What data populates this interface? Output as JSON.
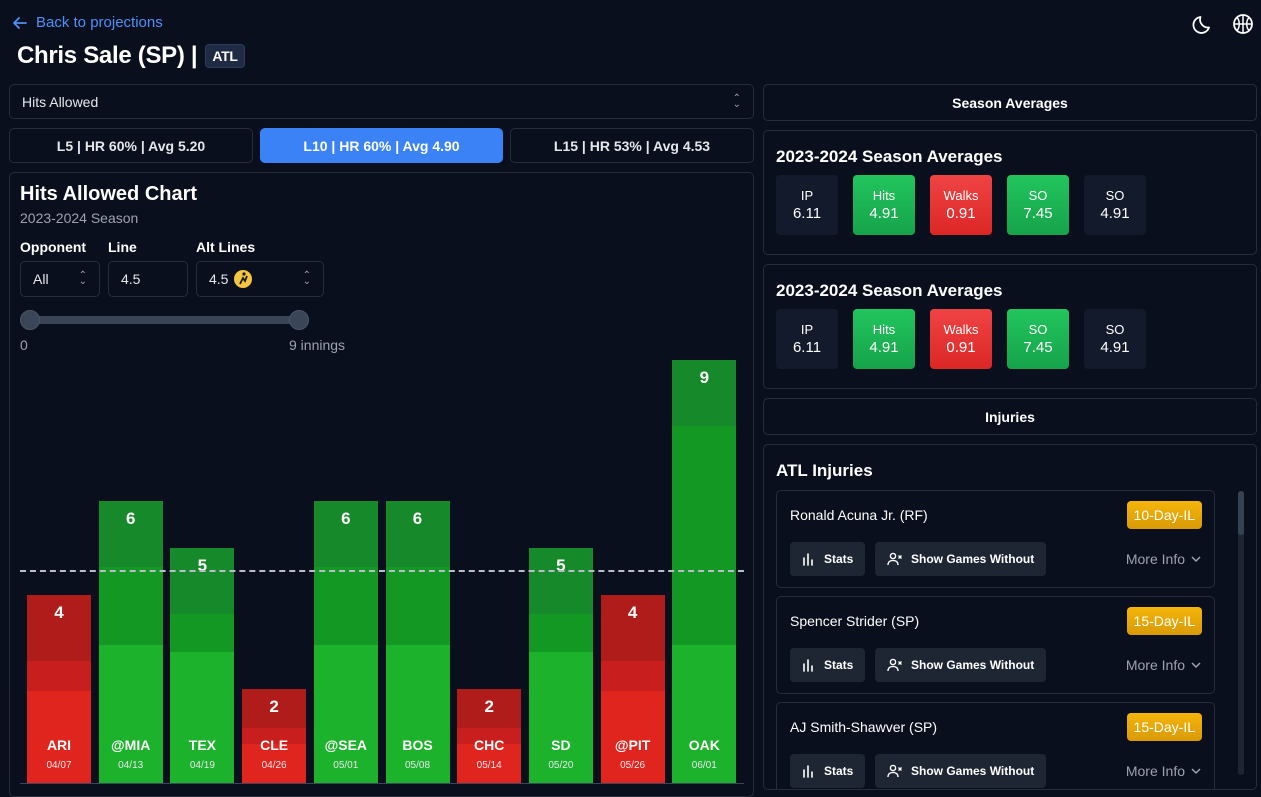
{
  "header": {
    "back_label": "Back to projections",
    "player_title": "Chris Sale (SP) |",
    "team": "ATL",
    "icons": [
      "moon-icon",
      "basketball-icon"
    ]
  },
  "stat_select": {
    "value": "Hits Allowed"
  },
  "ranges": [
    {
      "label": "L5 | HR 60% | Avg 5.20",
      "active": false
    },
    {
      "label": "L10 | HR 60% | Avg 4.90",
      "active": true
    },
    {
      "label": "L15 | HR 53% | Avg 4.53",
      "active": false
    }
  ],
  "chart_panel": {
    "title": "Hits Allowed Chart",
    "subtitle": "2023-2024 Season",
    "filters": {
      "opponent_label": "Opponent",
      "opponent_value": "All",
      "line_label": "Line",
      "line_value": "4.5",
      "alt_label": "Alt Lines",
      "alt_value": "4.5"
    },
    "slider": {
      "min_label": "0",
      "max_label": "9 innings",
      "min": 0,
      "max": 9
    }
  },
  "chart_data": {
    "type": "bar",
    "categories": [
      "ARI",
      "@MIA",
      "TEX",
      "CLE",
      "@SEA",
      "BOS",
      "CHC",
      "SD",
      "@PIT",
      "OAK"
    ],
    "dates": [
      "04/07",
      "04/13",
      "04/19",
      "04/26",
      "05/01",
      "05/08",
      "05/14",
      "05/20",
      "05/26",
      "06/01"
    ],
    "values": [
      4,
      6,
      5,
      2,
      6,
      6,
      2,
      5,
      4,
      9
    ],
    "line": 4.5,
    "colors": {
      "over": "#16a34a",
      "under": "#dc2626"
    }
  },
  "right": {
    "season_averages_header": "Season Averages",
    "avg_cards": [
      {
        "title": "2023-2024 Season Averages",
        "stats": [
          {
            "label": "IP",
            "value": "6.11",
            "tone": "n"
          },
          {
            "label": "Hits",
            "value": "4.91",
            "tone": "g"
          },
          {
            "label": "Walks",
            "value": "0.91",
            "tone": "r"
          },
          {
            "label": "SO",
            "value": "7.45",
            "tone": "g"
          },
          {
            "label": "SO",
            "value": "4.91",
            "tone": "n"
          }
        ]
      },
      {
        "title": "2023-2024 Season Averages",
        "stats": [
          {
            "label": "IP",
            "value": "6.11",
            "tone": "n"
          },
          {
            "label": "Hits",
            "value": "4.91",
            "tone": "g"
          },
          {
            "label": "Walks",
            "value": "0.91",
            "tone": "r"
          },
          {
            "label": "SO",
            "value": "7.45",
            "tone": "g"
          },
          {
            "label": "SO",
            "value": "4.91",
            "tone": "n"
          }
        ]
      }
    ],
    "injuries_header": "Injuries",
    "injuries_title": "ATL Injuries",
    "stats_button": "Stats",
    "without_button": "Show Games Without",
    "more_info": "More Info",
    "injuries": [
      {
        "name": "Ronald Acuna Jr. (RF)",
        "status": "10-Day-IL"
      },
      {
        "name": "Spencer Strider (SP)",
        "status": "15-Day-IL"
      },
      {
        "name": "AJ Smith-Shawver (SP)",
        "status": "15-Day-IL"
      }
    ]
  }
}
